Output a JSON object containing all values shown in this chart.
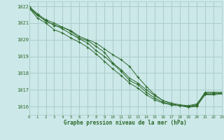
{
  "title": "Graphe pression niveau de la mer (hPa)",
  "background_color": "#cce8e8",
  "grid_color": "#aacccc",
  "line_color": "#2d6a2d",
  "xlim": [
    0,
    23
  ],
  "ylim": [
    1015.5,
    1022.3
  ],
  "yticks": [
    1016,
    1017,
    1018,
    1019,
    1020,
    1021,
    1022
  ],
  "xticks": [
    0,
    1,
    2,
    3,
    4,
    5,
    6,
    7,
    8,
    9,
    10,
    11,
    12,
    13,
    14,
    15,
    16,
    17,
    18,
    19,
    20,
    21,
    22,
    23
  ],
  "series": [
    [
      1021.9,
      1021.45,
      1021.15,
      1020.85,
      1020.75,
      1020.5,
      1020.1,
      1019.95,
      1019.6,
      1019.25,
      1018.6,
      1018.2,
      1017.7,
      1017.4,
      1017.0,
      1016.65,
      1016.35,
      1016.2,
      1016.1,
      1016.05,
      1016.15,
      1016.75,
      1016.75,
      1016.8
    ],
    [
      1021.9,
      1021.3,
      1021.0,
      1020.6,
      1020.4,
      1020.1,
      1019.85,
      1019.55,
      1019.15,
      1018.7,
      1018.25,
      1017.85,
      1017.4,
      1017.1,
      1016.7,
      1016.4,
      1016.2,
      1016.1,
      1016.05,
      1015.95,
      1016.0,
      1016.7,
      1016.7,
      1016.75
    ],
    [
      1022.0,
      1021.55,
      1021.2,
      1021.0,
      1020.75,
      1020.55,
      1020.2,
      1020.0,
      1019.8,
      1019.45,
      1019.1,
      1018.8,
      1018.4,
      1017.75,
      1017.2,
      1016.7,
      1016.35,
      1016.15,
      1016.05,
      1016.0,
      1016.1,
      1016.85,
      1016.85,
      1016.85
    ],
    [
      1021.95,
      1021.5,
      1021.1,
      1020.9,
      1020.65,
      1020.35,
      1020.05,
      1019.8,
      1019.35,
      1019.0,
      1018.55,
      1018.1,
      1017.55,
      1017.3,
      1016.85,
      1016.5,
      1016.25,
      1016.1,
      1016.05,
      1016.0,
      1016.05,
      1016.8,
      1016.8,
      1016.8
    ]
  ]
}
